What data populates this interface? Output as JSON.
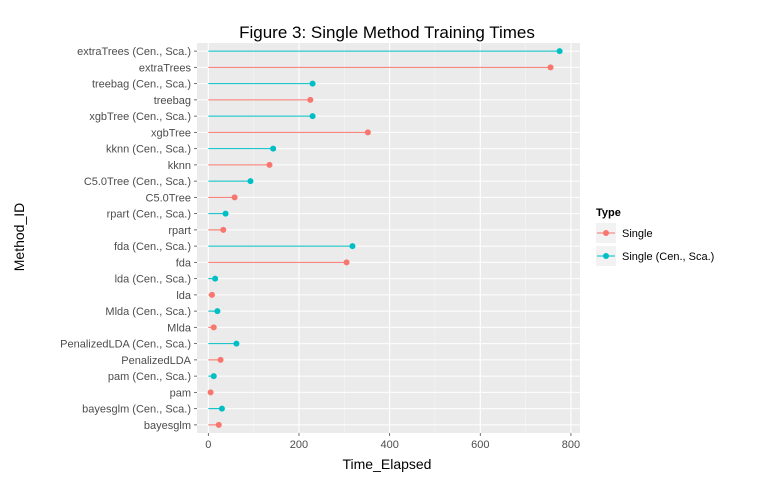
{
  "chart_data": {
    "type": "lollipop",
    "title": "Figure 3: Single Method Training Times",
    "xlabel": "Time_Elapsed",
    "ylabel": "Method_ID",
    "xlim": [
      -25,
      820
    ],
    "xticks": [
      0,
      200,
      400,
      600,
      800
    ],
    "grid": true,
    "legend": {
      "title": "Type",
      "position": "right"
    },
    "series": [
      {
        "name": "Single",
        "color": "#F8766D"
      },
      {
        "name": "Single (Cen., Sca.)",
        "color": "#00BFC4"
      }
    ],
    "points": [
      {
        "method": "extraTrees (Cen., Sca.)",
        "type": "Single (Cen., Sca.)",
        "value": 775
      },
      {
        "method": "extraTrees",
        "type": "Single",
        "value": 755
      },
      {
        "method": "treebag (Cen., Sca.)",
        "type": "Single (Cen., Sca.)",
        "value": 230
      },
      {
        "method": "treebag",
        "type": "Single",
        "value": 225
      },
      {
        "method": "xgbTree (Cen., Sca.)",
        "type": "Single (Cen., Sca.)",
        "value": 230
      },
      {
        "method": "xgbTree",
        "type": "Single",
        "value": 352
      },
      {
        "method": "kknn (Cen., Sca.)",
        "type": "Single (Cen., Sca.)",
        "value": 143
      },
      {
        "method": "kknn",
        "type": "Single",
        "value": 135
      },
      {
        "method": "C5.0Tree (Cen., Sca.)",
        "type": "Single (Cen., Sca.)",
        "value": 93
      },
      {
        "method": "C5.0Tree",
        "type": "Single",
        "value": 58
      },
      {
        "method": "rpart (Cen., Sca.)",
        "type": "Single (Cen., Sca.)",
        "value": 38
      },
      {
        "method": "rpart",
        "type": "Single",
        "value": 33
      },
      {
        "method": "fda (Cen., Sca.)",
        "type": "Single (Cen., Sca.)",
        "value": 318
      },
      {
        "method": "fda",
        "type": "Single",
        "value": 305
      },
      {
        "method": "lda (Cen., Sca.)",
        "type": "Single (Cen., Sca.)",
        "value": 15
      },
      {
        "method": "lda",
        "type": "Single",
        "value": 8
      },
      {
        "method": "Mlda (Cen., Sca.)",
        "type": "Single (Cen., Sca.)",
        "value": 20
      },
      {
        "method": "Mlda",
        "type": "Single",
        "value": 12
      },
      {
        "method": "PenalizedLDA (Cen., Sca.)",
        "type": "Single (Cen., Sca.)",
        "value": 62
      },
      {
        "method": "PenalizedLDA",
        "type": "Single",
        "value": 27
      },
      {
        "method": "pam (Cen., Sca.)",
        "type": "Single (Cen., Sca.)",
        "value": 12
      },
      {
        "method": "pam",
        "type": "Single",
        "value": 5
      },
      {
        "method": "bayesglm (Cen., Sca.)",
        "type": "Single (Cen., Sca.)",
        "value": 30
      },
      {
        "method": "bayesglm",
        "type": "Single",
        "value": 23
      }
    ]
  }
}
